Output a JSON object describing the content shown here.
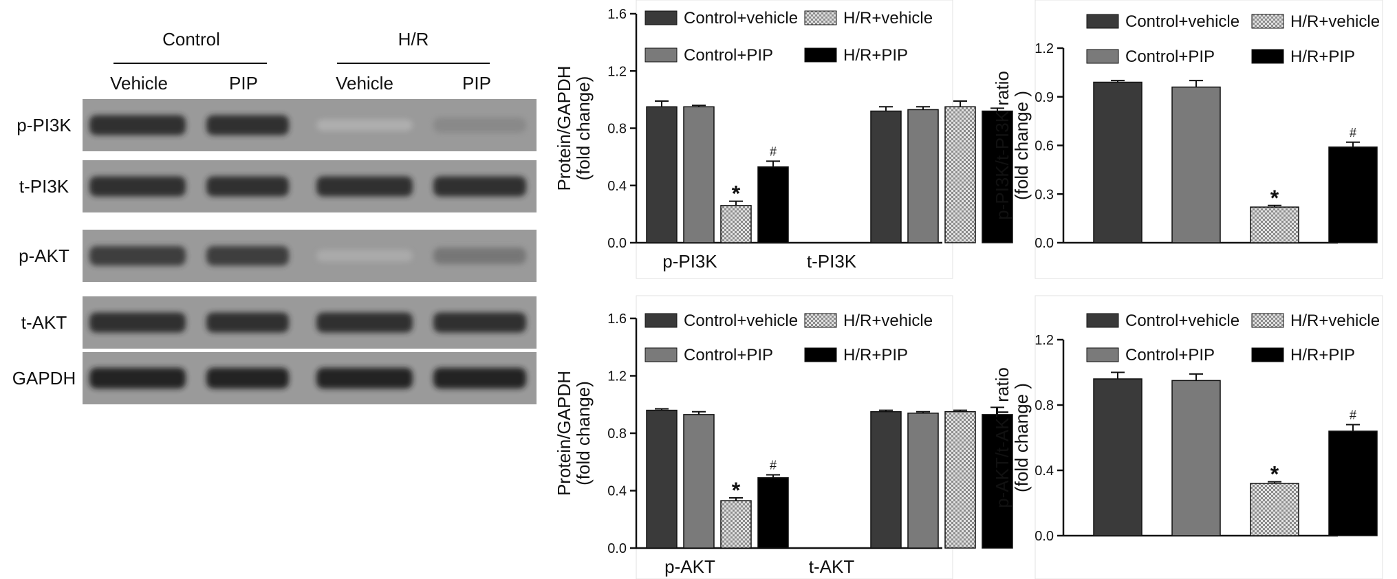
{
  "blot": {
    "groups": [
      "Control",
      "H/R"
    ],
    "lanes": [
      "Vehicle",
      "PIP",
      "Vehicle",
      "PIP"
    ],
    "rows": [
      {
        "label": "p-PI3K",
        "intensity": [
          0.85,
          0.85,
          0.15,
          0.45
        ]
      },
      {
        "label": "t-PI3K",
        "intensity": [
          0.85,
          0.85,
          0.85,
          0.85
        ]
      },
      {
        "label": "p-AKT",
        "intensity": [
          0.8,
          0.8,
          0.2,
          0.55
        ]
      },
      {
        "label": "t-AKT",
        "intensity": [
          0.85,
          0.85,
          0.85,
          0.85
        ]
      },
      {
        "label": "GAPDH",
        "intensity": [
          0.9,
          0.9,
          0.9,
          0.9
        ]
      }
    ]
  },
  "legend": [
    {
      "label": "Control+vehicle",
      "color": "#3a3a3a",
      "pattern": "solid"
    },
    {
      "label": "H/R+vehicle",
      "color": "#cccccc",
      "pattern": "checker"
    },
    {
      "label": "Control+PIP",
      "color": "#7a7a7a",
      "pattern": "solid"
    },
    {
      "label": "H/R+PIP",
      "color": "#000000",
      "pattern": "solid"
    }
  ],
  "chart_data": [
    {
      "id": "pi3k-protein",
      "type": "bar",
      "ylabel": "Protein/GAPDH",
      "ylabel2": "(fold change)",
      "ylim": [
        0,
        1.6
      ],
      "yticks": [
        "0.0",
        "0.4",
        "0.8",
        "1.2",
        "1.6"
      ],
      "categories": [
        "p-PI3K",
        "t-PI3K"
      ],
      "series": [
        {
          "name": "Control+vehicle",
          "values": [
            0.95,
            0.92
          ],
          "errors": [
            0.04,
            0.03
          ]
        },
        {
          "name": "Control+PIP",
          "values": [
            0.95,
            0.93
          ],
          "errors": [
            0.01,
            0.02
          ]
        },
        {
          "name": "H/R+vehicle",
          "values": [
            0.26,
            0.95
          ],
          "errors": [
            0.03,
            0.04
          ]
        },
        {
          "name": "H/R+PIP",
          "values": [
            0.53,
            0.92
          ],
          "errors": [
            0.04,
            0.02
          ]
        }
      ],
      "annotations": [
        {
          "category": 0,
          "series": 2,
          "text": "*"
        },
        {
          "category": 0,
          "series": 3,
          "text": "#"
        }
      ]
    },
    {
      "id": "pi3k-ratio",
      "type": "bar",
      "ylabel": "p-PI3K/t-PI3K ratio",
      "ylabel2": "(fold change )",
      "ylim": [
        0,
        1.2
      ],
      "yticks": [
        "0.0",
        "0.3",
        "0.6",
        "0.9",
        "1.2"
      ],
      "categories": [
        ""
      ],
      "series": [
        {
          "name": "Control+vehicle",
          "values": [
            0.99
          ],
          "errors": [
            0.01
          ]
        },
        {
          "name": "Control+PIP",
          "values": [
            0.96
          ],
          "errors": [
            0.04
          ]
        },
        {
          "name": "H/R+vehicle",
          "values": [
            0.22
          ],
          "errors": [
            0.01
          ]
        },
        {
          "name": "H/R+PIP",
          "values": [
            0.59
          ],
          "errors": [
            0.03
          ]
        }
      ],
      "annotations": [
        {
          "category": 0,
          "series": 2,
          "text": "*"
        },
        {
          "category": 0,
          "series": 3,
          "text": "#"
        }
      ]
    },
    {
      "id": "akt-protein",
      "type": "bar",
      "ylabel": "Protein/GAPDH",
      "ylabel2": "(fold change)",
      "ylim": [
        0,
        1.6
      ],
      "yticks": [
        "0.0",
        "0.4",
        "0.8",
        "1.2",
        "1.6"
      ],
      "categories": [
        "p-AKT",
        "t-AKT"
      ],
      "series": [
        {
          "name": "Control+vehicle",
          "values": [
            0.96,
            0.95
          ],
          "errors": [
            0.01,
            0.01
          ]
        },
        {
          "name": "Control+PIP",
          "values": [
            0.93,
            0.94
          ],
          "errors": [
            0.02,
            0.01
          ]
        },
        {
          "name": "H/R+vehicle",
          "values": [
            0.33,
            0.95
          ],
          "errors": [
            0.02,
            0.01
          ]
        },
        {
          "name": "H/R+PIP",
          "values": [
            0.49,
            0.93
          ],
          "errors": [
            0.02,
            0.05
          ]
        }
      ],
      "annotations": [
        {
          "category": 0,
          "series": 2,
          "text": "*"
        },
        {
          "category": 0,
          "series": 3,
          "text": "#"
        }
      ]
    },
    {
      "id": "akt-ratio",
      "type": "bar",
      "ylabel": "p-AKT/t-AKT ratio",
      "ylabel2": "(fold change )",
      "ylim": [
        0,
        1.2
      ],
      "yticks": [
        "0.0",
        "0.4",
        "0.8",
        "1.2"
      ],
      "categories": [
        ""
      ],
      "series": [
        {
          "name": "Control+vehicle",
          "values": [
            0.96
          ],
          "errors": [
            0.04
          ]
        },
        {
          "name": "Control+PIP",
          "values": [
            0.95
          ],
          "errors": [
            0.04
          ]
        },
        {
          "name": "H/R+vehicle",
          "values": [
            0.32
          ],
          "errors": [
            0.01
          ]
        },
        {
          "name": "H/R+PIP",
          "values": [
            0.64
          ],
          "errors": [
            0.04
          ]
        }
      ],
      "annotations": [
        {
          "category": 0,
          "series": 2,
          "text": "*"
        },
        {
          "category": 0,
          "series": 3,
          "text": "#"
        }
      ]
    }
  ]
}
